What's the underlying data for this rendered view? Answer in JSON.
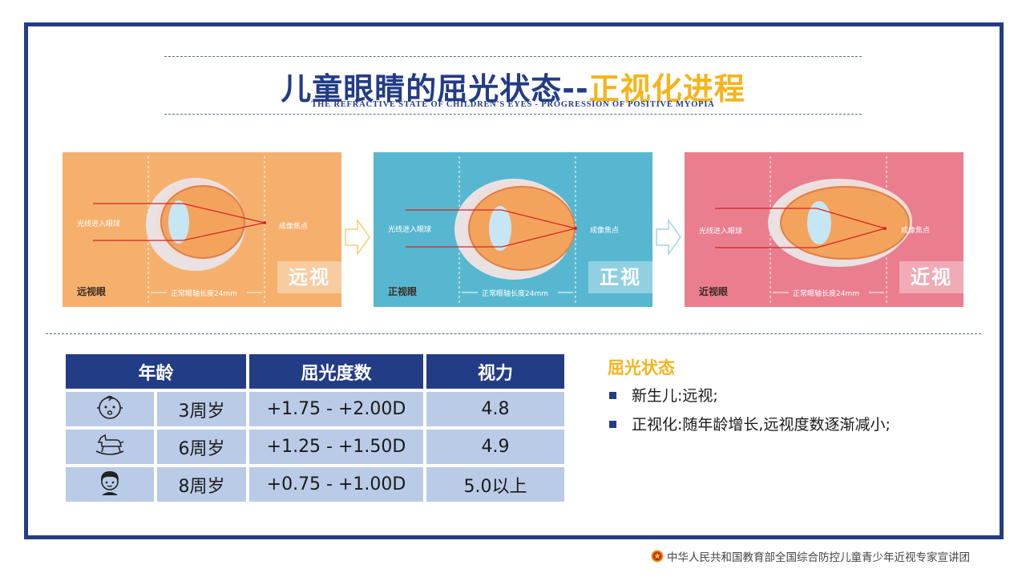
{
  "title": {
    "main": "儿童眼睛的屈光状态--",
    "accent": "正视化进程",
    "subtitle": "THE REFRACTIVE STATE OF CHILDREN'S EYES - PROGRESSION OF  POSITIVE MYOPIA"
  },
  "panels": [
    {
      "label_in": "光线进入眼球",
      "label_focus": "成像焦点",
      "axis": "正常眼轴长度24mm",
      "name": "远视眼",
      "badge": "远视",
      "bg": "#f6b06e"
    },
    {
      "label_in": "光线进入眼球",
      "label_focus": "成像焦点",
      "axis": "正常眼轴长度24mm",
      "name": "正视眼",
      "badge": "正视",
      "bg": "#57b7d0"
    },
    {
      "label_in": "光线进入眼球",
      "label_focus": "成像焦点",
      "axis": "正常眼轴长度24mm",
      "name": "近视眼",
      "badge": "近视",
      "bg": "#ea7e8f"
    }
  ],
  "table": {
    "headers": [
      "年龄",
      "屈光度数",
      "视力"
    ],
    "rows": [
      {
        "icon": "baby-face-icon",
        "age": "3周岁",
        "refraction": "+1.75 - +2.00D",
        "vision": "4.8"
      },
      {
        "icon": "rocking-horse-icon",
        "age": "6周岁",
        "refraction": "+1.25 - +1.50D",
        "vision": "4.9"
      },
      {
        "icon": "child-face-icon",
        "age": "8周岁",
        "refraction": "+0.75 - +1.00D",
        "vision": "5.0以上"
      }
    ]
  },
  "status": {
    "title": "屈光状态",
    "items": [
      "新生儿:远视;",
      "正视化:随年龄增长,远视度数逐渐减小;"
    ]
  },
  "footer": {
    "text": "中华人民共和国教育部全国综合防控儿童青少年近视专家宣讲团"
  },
  "colors": {
    "navy": "#233c86",
    "accent_yellow": "#f5b41a",
    "table_cell": "#b9cbe6"
  }
}
